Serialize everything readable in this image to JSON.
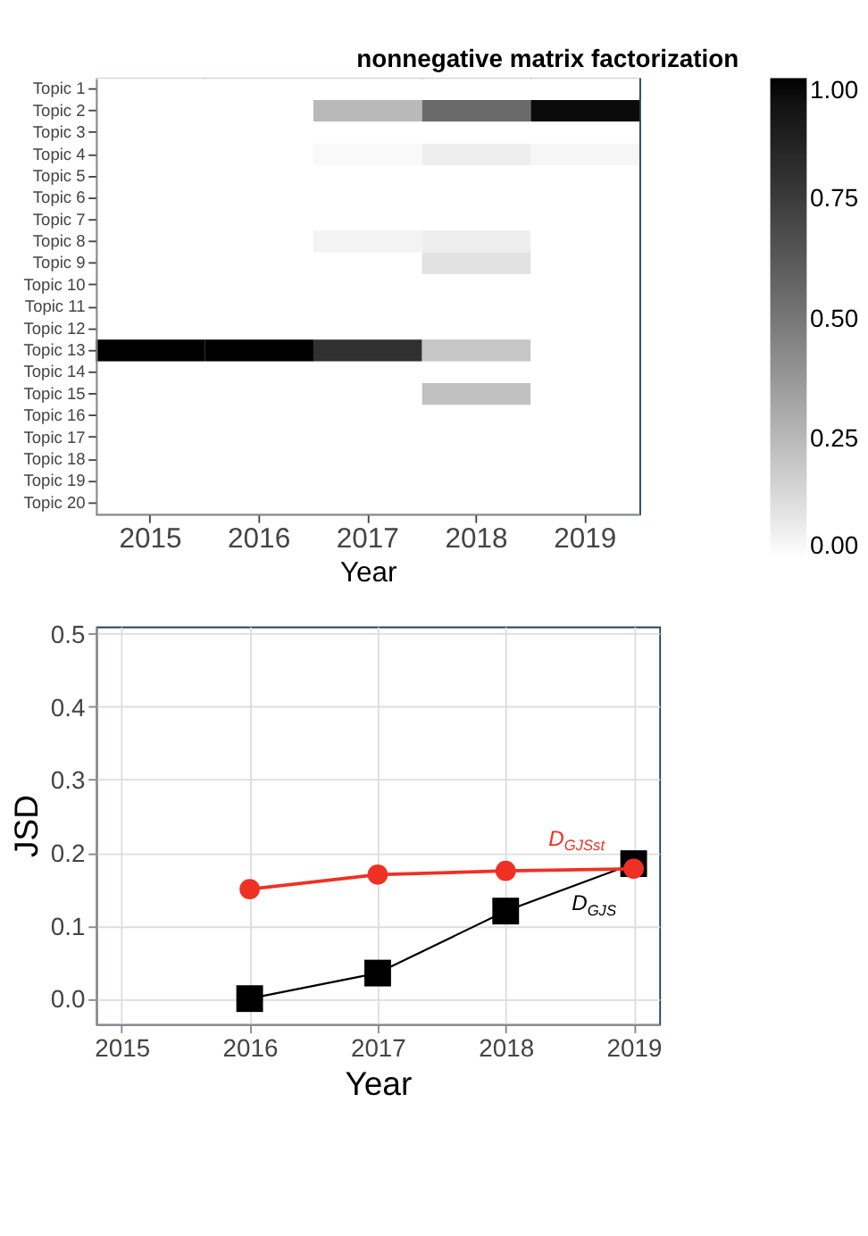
{
  "chart_data": [
    {
      "type": "heatmap",
      "title": "nonnegative matrix factorization",
      "xlabel": "Year",
      "categories": [
        "2015",
        "2016",
        "2017",
        "2018",
        "2019"
      ],
      "y_categories": [
        "Topic 1",
        "Topic 2",
        "Topic 3",
        "Topic 4",
        "Topic 5",
        "Topic 6",
        "Topic 7",
        "Topic 8",
        "Topic 9",
        "Topic 10",
        "Topic 11",
        "Topic 12",
        "Topic 13",
        "Topic 14",
        "Topic 15",
        "Topic 16",
        "Topic 17",
        "Topic 18",
        "Topic 19",
        "Topic 20"
      ],
      "cells": [
        [
          0,
          0,
          0,
          0,
          0
        ],
        [
          0,
          0,
          0.25,
          0.55,
          0.97
        ],
        [
          0,
          0,
          0,
          0,
          0
        ],
        [
          0,
          0,
          0.02,
          0.06,
          0.03
        ],
        [
          0,
          0,
          0,
          0,
          0
        ],
        [
          0,
          0,
          0,
          0,
          0
        ],
        [
          0,
          0,
          0,
          0,
          0
        ],
        [
          0,
          0,
          0.04,
          0.06,
          0
        ],
        [
          0,
          0,
          0,
          0.1,
          0
        ],
        [
          0,
          0,
          0,
          0,
          0
        ],
        [
          0,
          0,
          0,
          0,
          0
        ],
        [
          0,
          0,
          0,
          0,
          0
        ],
        [
          1.0,
          1.0,
          0.8,
          0.2,
          0
        ],
        [
          0,
          0,
          0,
          0,
          0
        ],
        [
          0,
          0,
          0,
          0.22,
          0
        ],
        [
          0,
          0,
          0,
          0,
          0
        ],
        [
          0,
          0,
          0,
          0,
          0
        ],
        [
          0,
          0,
          0,
          0,
          0
        ],
        [
          0,
          0,
          0,
          0,
          0
        ],
        [
          0,
          0,
          0,
          0,
          0
        ]
      ],
      "clim": [
        0,
        1
      ],
      "cticks": [
        {
          "value": 0,
          "label": "0.00"
        },
        {
          "value": 0.25,
          "label": "0.25"
        },
        {
          "value": 0.5,
          "label": "0.50"
        },
        {
          "value": 0.75,
          "label": "0.75"
        },
        {
          "value": 1,
          "label": "1.00"
        }
      ],
      "grid": false
    },
    {
      "type": "line",
      "xlabel": "Year",
      "ylabel": "JSD",
      "x": [
        2016,
        2017,
        2018,
        2019
      ],
      "series": [
        {
          "name": "D$_{GJS}$",
          "color": "#000000",
          "marker": "square",
          "values": [
            0.0,
            0.035,
            0.12,
            0.185
          ]
        },
        {
          "name": "D$_{GJSst}$",
          "color": "#ee3124",
          "marker": "circle",
          "values": [
            0.15,
            0.17,
            0.175,
            0.178
          ]
        }
      ],
      "xlim": [
        2014.8,
        2019.2
      ],
      "xticks": [
        2015,
        2016,
        2017,
        2018,
        2019
      ],
      "ylim": [
        -0.035,
        0.51
      ],
      "yticks": [
        {
          "value": 0,
          "label": "0.0"
        },
        {
          "value": 0.1,
          "label": "0.1"
        },
        {
          "value": 0.2,
          "label": "0.2"
        },
        {
          "value": 0.3,
          "label": "0.3"
        },
        {
          "value": 0.4,
          "label": "0.4"
        },
        {
          "value": 0.5,
          "label": "0.5"
        }
      ],
      "grid": true
    }
  ]
}
